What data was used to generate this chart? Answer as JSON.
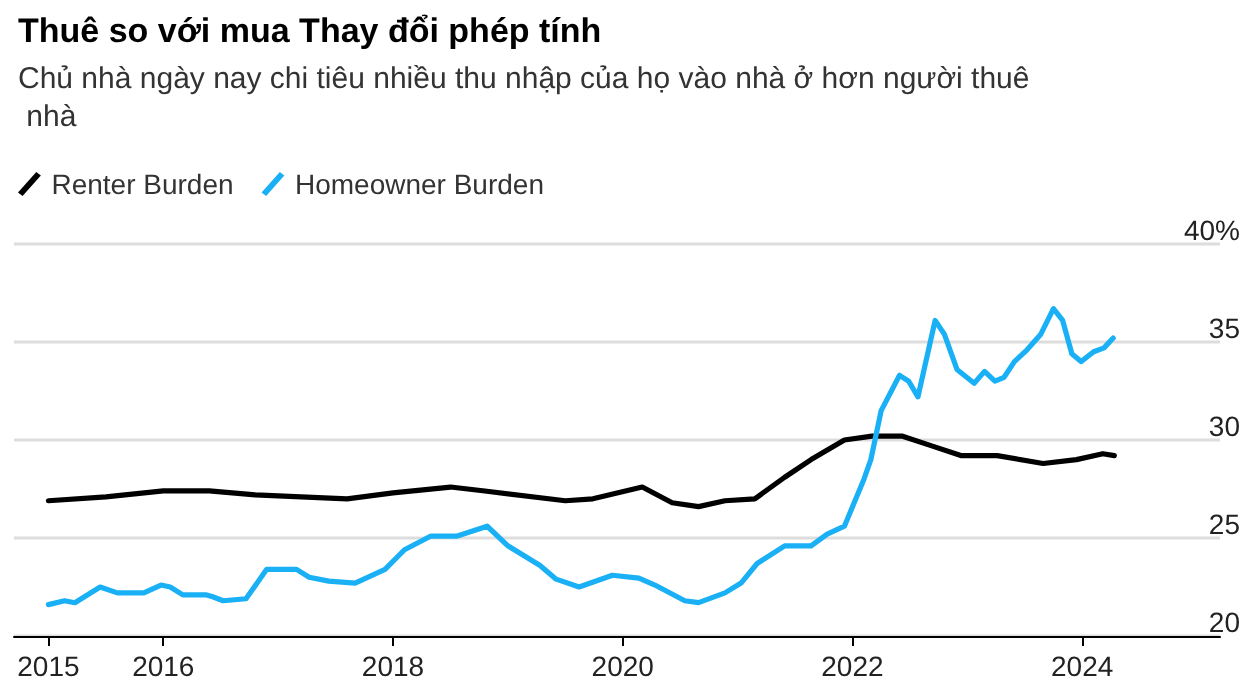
{
  "chart_data": {
    "type": "line",
    "title": "Thuê so với mua Thay đổi phép tính",
    "subtitle": "Chủ nhà ngày nay chi tiêu nhiều thu nhập của họ vào nhà ở hơn người thuê nhà",
    "xlim": [
      2014.7,
      2025.2
    ],
    "xticks": [
      2015,
      2016,
      2018,
      2020,
      2022,
      2024
    ],
    "ylim": [
      20,
      40
    ],
    "yticks": [
      20,
      25,
      30,
      35,
      {
        "value": 40,
        "label": "40%"
      }
    ],
    "grid": "y",
    "legend": "top left",
    "marker": "none",
    "line_style": "solid",
    "series": [
      {
        "name": "Renter Burden",
        "color": "#000000",
        "x": [
          2015,
          2015.5,
          2016,
          2016.4,
          2016.8,
          2017.6,
          2018,
          2018.5,
          2018.8,
          2019.5,
          2019.74,
          2020.17,
          2020.43,
          2020.66,
          2020.89,
          2021.15,
          2021.41,
          2021.64,
          2021.93,
          2022.17,
          2022.43,
          2022.69,
          2022.95,
          2023.26,
          2023.66,
          2023.95,
          2024.18,
          2024.28
        ],
        "values": [
          26.9,
          27.1,
          27.4,
          27.4,
          27.2,
          27.0,
          27.3,
          27.6,
          27.4,
          26.9,
          27.0,
          27.6,
          26.8,
          26.6,
          26.9,
          27.0,
          28.1,
          29.0,
          30.0,
          30.2,
          30.2,
          29.7,
          29.2,
          29.2,
          28.8,
          29.0,
          29.3,
          29.2
        ]
      },
      {
        "name": "Homeowner Burden",
        "color": "#1ab0f5",
        "x": [
          2015,
          2015.14,
          2015.23,
          2015.45,
          2015.6,
          2015.83,
          2015.98,
          2016.06,
          2016.17,
          2016.37,
          2016.43,
          2016.52,
          2016.72,
          2016.9,
          2017.16,
          2017.27,
          2017.44,
          2017.67,
          2017.93,
          2018.1,
          2018.33,
          2018.56,
          2018.82,
          2019.0,
          2019.28,
          2019.42,
          2019.62,
          2019.91,
          2020.14,
          2020.28,
          2020.54,
          2020.66,
          2020.89,
          2021.03,
          2021.17,
          2021.41,
          2021.64,
          2021.78,
          2021.93,
          2022.1,
          2022.16,
          2022.25,
          2022.41,
          2022.49,
          2022.57,
          2022.72,
          2022.8,
          2022.91,
          2023.06,
          2023.15,
          2023.24,
          2023.32,
          2023.41,
          2023.52,
          2023.64,
          2023.75,
          2023.83,
          2023.91,
          2023.99,
          2024.1,
          2024.19,
          2024.27
        ],
        "values": [
          21.6,
          21.8,
          21.7,
          22.5,
          22.2,
          22.2,
          22.6,
          22.5,
          22.1,
          22.1,
          22.0,
          21.8,
          21.9,
          23.4,
          23.4,
          23.0,
          22.8,
          22.7,
          23.4,
          24.4,
          25.1,
          25.1,
          25.6,
          24.6,
          23.6,
          22.9,
          22.5,
          23.1,
          22.95,
          22.6,
          21.8,
          21.7,
          22.2,
          22.7,
          23.7,
          24.6,
          24.6,
          25.2,
          25.6,
          28.0,
          29.0,
          31.5,
          33.3,
          33.0,
          32.2,
          36.1,
          35.4,
          33.6,
          32.9,
          33.5,
          33.0,
          33.2,
          34.0,
          34.6,
          35.4,
          36.7,
          36.1,
          34.4,
          34.0,
          34.5,
          34.7,
          35.2
        ]
      }
    ]
  }
}
